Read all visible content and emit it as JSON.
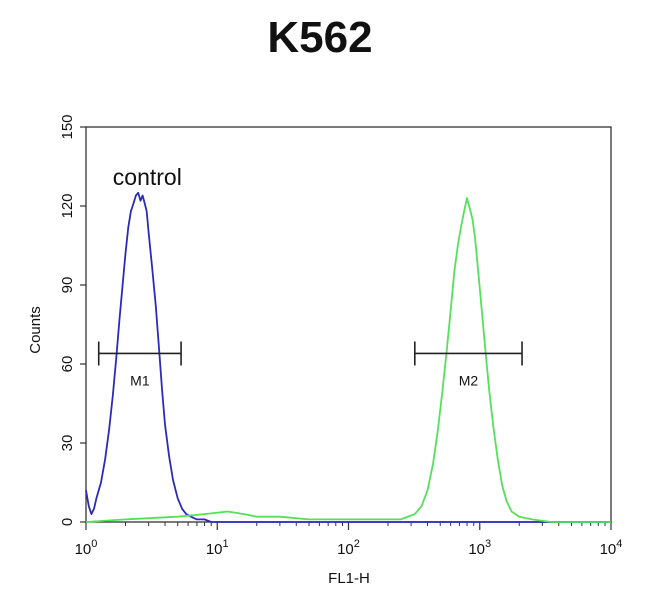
{
  "chart_data": {
    "type": "line",
    "title": "K562",
    "xlabel": "FL1-H",
    "ylabel": "Counts",
    "x_scale": "log",
    "xlim": [
      1,
      10000
    ],
    "ylim": [
      0,
      150
    ],
    "grid": false,
    "x_ticks": [
      {
        "value": 1,
        "base": "10",
        "exp": "0"
      },
      {
        "value": 10,
        "base": "10",
        "exp": "1"
      },
      {
        "value": 100,
        "base": "10",
        "exp": "2"
      },
      {
        "value": 1000,
        "base": "10",
        "exp": "3"
      },
      {
        "value": 10000,
        "base": "10",
        "exp": "4"
      }
    ],
    "y_ticks": [
      {
        "value": 0,
        "label": "0"
      },
      {
        "value": 30,
        "label": "30"
      },
      {
        "value": 60,
        "label": "60"
      },
      {
        "value": 90,
        "label": "90"
      },
      {
        "value": 120,
        "label": "120"
      },
      {
        "value": 150,
        "label": "150"
      }
    ],
    "series": [
      {
        "color": "#2b2bb8",
        "x": [
          1.0,
          1.05,
          1.1,
          1.15,
          1.2,
          1.3,
          1.4,
          1.5,
          1.6,
          1.7,
          1.8,
          1.9,
          2.0,
          2.1,
          2.2,
          2.3,
          2.4,
          2.5,
          2.6,
          2.7,
          2.8,
          2.9,
          3.0,
          3.2,
          3.4,
          3.6,
          3.8,
          4.0,
          4.3,
          4.6,
          5.0,
          5.4,
          5.8,
          6.3,
          7.0,
          8.0,
          9.0,
          10.0,
          13.0,
          20.0,
          50.0,
          100.0,
          1000.0,
          10000.0
        ],
        "y": [
          12,
          6,
          3,
          5,
          9,
          15,
          24,
          35,
          48,
          62,
          77,
          90,
          102,
          112,
          118,
          121,
          124,
          125,
          122,
          124,
          121,
          118,
          110,
          96,
          82,
          66,
          50,
          37,
          25,
          16,
          9,
          5,
          3,
          2,
          1,
          1,
          0,
          0,
          0,
          0,
          0,
          0,
          0,
          0
        ]
      },
      {
        "color": "#55e05a",
        "x": [
          1.0,
          2.0,
          5.0,
          8.0,
          12.0,
          16.0,
          20.0,
          30.0,
          50.0,
          80.0,
          150.0,
          250.0,
          320.0,
          360.0,
          400.0,
          440.0,
          480.0,
          520.0,
          560.0,
          600.0,
          640.0,
          680.0,
          720.0,
          760.0,
          800.0,
          840.0,
          880.0,
          920.0,
          970.0,
          1030.0,
          1100.0,
          1180.0,
          1270.0,
          1370.0,
          1480.0,
          1600.0,
          1750.0,
          2000.0,
          2500.0,
          3500.0,
          10000.0
        ],
        "y": [
          0,
          1,
          2,
          3,
          4,
          3,
          2,
          2,
          1,
          1,
          1,
          1,
          3,
          6,
          12,
          22,
          35,
          50,
          65,
          80,
          95,
          105,
          112,
          118,
          123,
          119,
          115,
          108,
          96,
          82,
          66,
          50,
          36,
          24,
          14,
          8,
          4,
          2,
          1,
          0,
          0
        ]
      }
    ],
    "annotations": [
      {
        "text": "control",
        "x": 1.6,
        "y": 131
      },
      {
        "text": "M1",
        "x1": 1.25,
        "x2": 5.3,
        "y": 64
      },
      {
        "text": "M2",
        "x1": 320,
        "x2": 2100,
        "y": 64
      }
    ]
  }
}
